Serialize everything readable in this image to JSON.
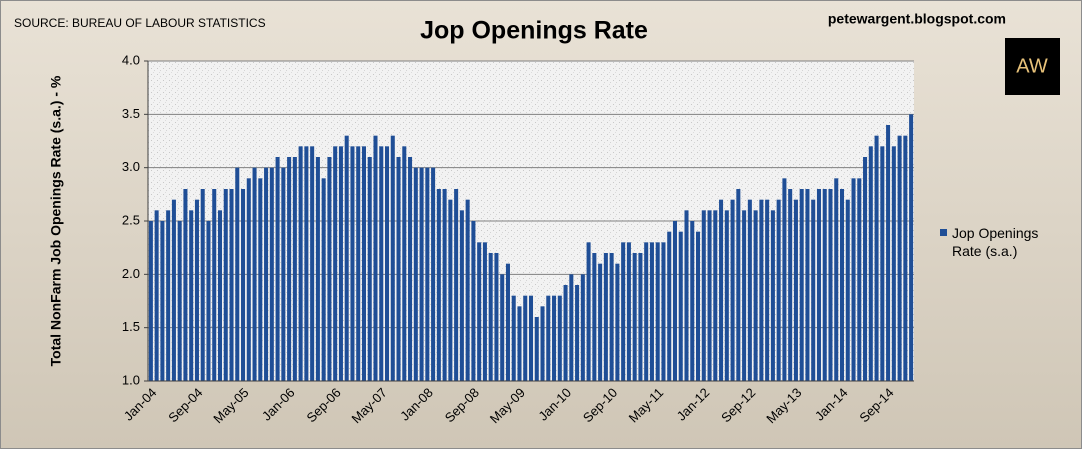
{
  "chart_data": {
    "type": "bar",
    "title": "Jop Openings Rate",
    "source": "SOURCE: BUREAU OF LABOUR STATISTICS",
    "site": "petewargent.blogspot.com",
    "logo": "AW",
    "y_label": "Total NonFarm Job Openings Rate (s.a.) - %",
    "categories": [
      "Jan-04",
      null,
      null,
      null,
      null,
      null,
      null,
      null,
      "Sep-04",
      null,
      null,
      null,
      null,
      null,
      null,
      null,
      "May-05",
      null,
      null,
      null,
      null,
      null,
      null,
      null,
      "Jan-06",
      null,
      null,
      null,
      null,
      null,
      null,
      null,
      "Sep-06",
      null,
      null,
      null,
      null,
      null,
      null,
      null,
      "May-07",
      null,
      null,
      null,
      null,
      null,
      null,
      null,
      "Jan-08",
      null,
      null,
      null,
      null,
      null,
      null,
      null,
      "Sep-08",
      null,
      null,
      null,
      null,
      null,
      null,
      null,
      "May-09",
      null,
      null,
      null,
      null,
      null,
      null,
      null,
      "Jan-10",
      null,
      null,
      null,
      null,
      null,
      null,
      null,
      "Sep-10",
      null,
      null,
      null,
      null,
      null,
      null,
      null,
      "May-11",
      null,
      null,
      null,
      null,
      null,
      null,
      null,
      "Jan-12",
      null,
      null,
      null,
      null,
      null,
      null,
      null,
      "Sep-12",
      null,
      null,
      null,
      null,
      null,
      null,
      null,
      "May-13",
      null,
      null,
      null,
      null,
      null,
      null,
      null,
      "Jan-14",
      null,
      null,
      null,
      null,
      null,
      null,
      null,
      "Sep-14",
      null,
      null,
      null,
      null
    ],
    "series": [
      {
        "name": "Jop Openings Rate (s.a.)",
        "color": "#1f4e96",
        "values": [
          2.5,
          2.6,
          2.5,
          2.6,
          2.7,
          2.5,
          2.8,
          2.6,
          2.7,
          2.8,
          2.5,
          2.8,
          2.6,
          2.8,
          2.8,
          3.0,
          2.8,
          2.9,
          3.0,
          2.9,
          3.0,
          3.0,
          3.1,
          3.0,
          3.1,
          3.1,
          3.2,
          3.2,
          3.2,
          3.1,
          2.9,
          3.1,
          3.2,
          3.2,
          3.3,
          3.2,
          3.2,
          3.2,
          3.1,
          3.3,
          3.2,
          3.2,
          3.3,
          3.1,
          3.2,
          3.1,
          3.0,
          3.0,
          3.0,
          3.0,
          2.8,
          2.8,
          2.7,
          2.8,
          2.6,
          2.7,
          2.5,
          2.3,
          2.3,
          2.2,
          2.2,
          2.0,
          2.1,
          1.8,
          1.7,
          1.8,
          1.8,
          1.6,
          1.7,
          1.8,
          1.8,
          1.8,
          1.9,
          2.0,
          1.9,
          2.0,
          2.3,
          2.2,
          2.1,
          2.2,
          2.2,
          2.1,
          2.3,
          2.3,
          2.2,
          2.2,
          2.3,
          2.3,
          2.3,
          2.3,
          2.4,
          2.5,
          2.4,
          2.6,
          2.5,
          2.4,
          2.6,
          2.6,
          2.6,
          2.7,
          2.6,
          2.7,
          2.8,
          2.6,
          2.7,
          2.6,
          2.7,
          2.7,
          2.6,
          2.7,
          2.9,
          2.8,
          2.7,
          2.8,
          2.8,
          2.7,
          2.8,
          2.8,
          2.8,
          2.9,
          2.8,
          2.7,
          2.9,
          2.9,
          3.1,
          3.2,
          3.3,
          3.2,
          3.4,
          3.2,
          3.3,
          3.3,
          3.5
        ]
      }
    ],
    "ylim": [
      1.0,
      4.0
    ],
    "yticks": [
      {
        "value": 1.0,
        "label": "1.0"
      },
      {
        "value": 1.5,
        "label": "1.5"
      },
      {
        "value": 2.0,
        "label": "2.0"
      },
      {
        "value": 2.5,
        "label": "2.5"
      },
      {
        "value": 3.0,
        "label": "3.0"
      },
      {
        "value": 3.5,
        "label": "3.5"
      },
      {
        "value": 4.0,
        "label": "4.0"
      }
    ],
    "grid": true,
    "legend": "right"
  }
}
